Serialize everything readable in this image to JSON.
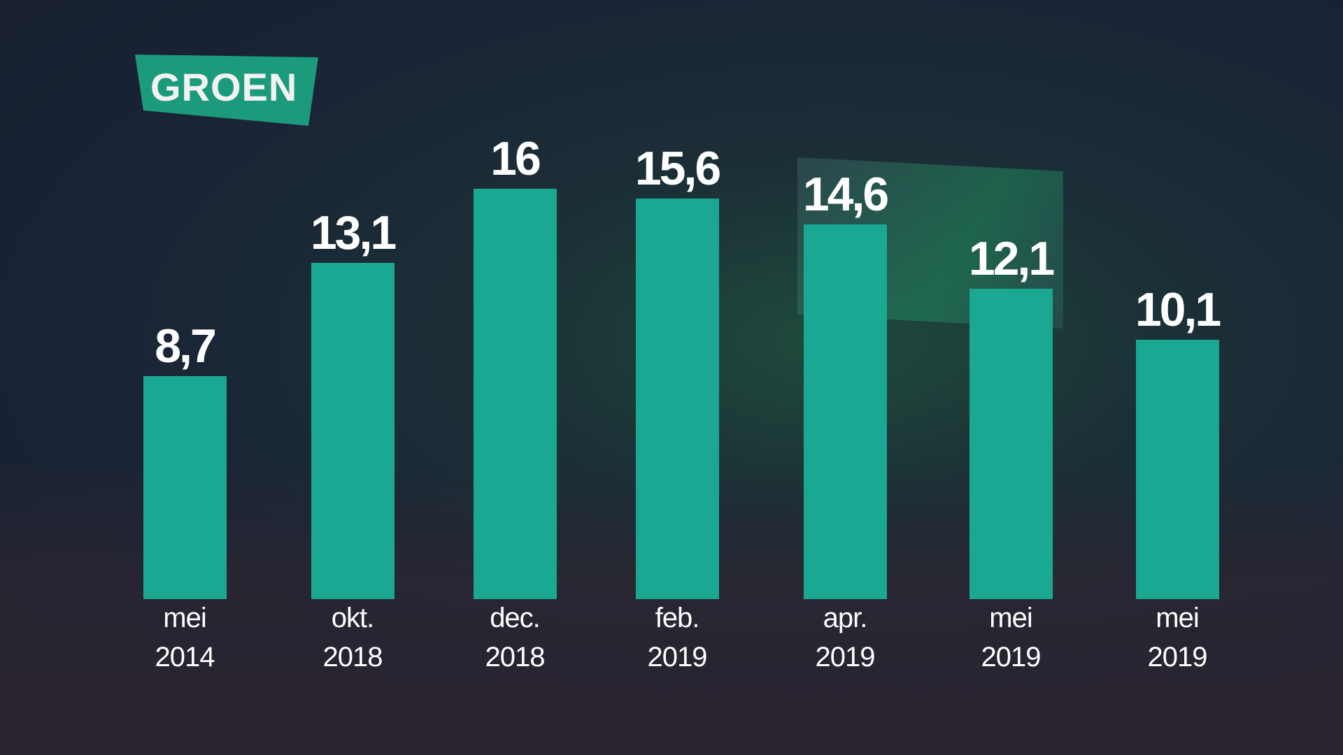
{
  "logo": {
    "text": "GROEN",
    "color": "#1c9a7c"
  },
  "chart_data": {
    "type": "bar",
    "title": "",
    "xlabel": "",
    "ylabel": "",
    "categories": [
      {
        "month": "mei",
        "year": "2014"
      },
      {
        "month": "okt.",
        "year": "2018"
      },
      {
        "month": "dec.",
        "year": "2018"
      },
      {
        "month": "feb.",
        "year": "2019"
      },
      {
        "month": "apr.",
        "year": "2019"
      },
      {
        "month": "mei",
        "year": "2019"
      },
      {
        "month": "mei",
        "year": "2019"
      }
    ],
    "values": [
      8.7,
      13.1,
      16,
      15.6,
      14.6,
      12.1,
      10.1
    ],
    "labels": [
      "8,7",
      "13,1",
      "16",
      "15,6",
      "14,6",
      "12,1",
      "10,1"
    ],
    "ylim": [
      0,
      17
    ],
    "grid": false,
    "bar_color": "#1aa893"
  }
}
